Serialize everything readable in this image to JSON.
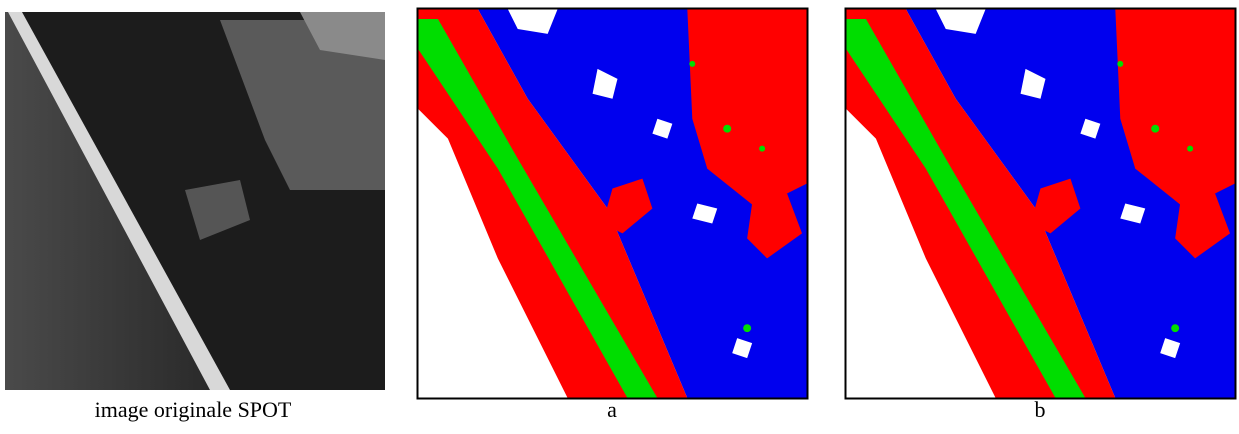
{
  "figure": {
    "panels": [
      {
        "caption": "image originale SPOT"
      },
      {
        "caption": "a"
      },
      {
        "caption": "b"
      }
    ]
  }
}
